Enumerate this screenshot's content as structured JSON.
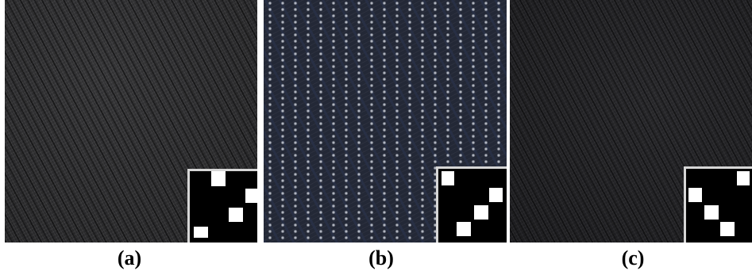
{
  "figure": {
    "panels": [
      {
        "id": "a",
        "caption": "(a)",
        "fabric_color": "#2a2a2c",
        "weave_cells": 4
      },
      {
        "id": "b",
        "caption": "(b)",
        "fabric_color": "#232836",
        "weave_cells": 4
      },
      {
        "id": "c",
        "caption": "(c)",
        "fabric_color": "#1f1f22",
        "weave_cells": 4
      }
    ]
  },
  "colors": {
    "inset_background": "#000000",
    "inset_cell": "#ffffff",
    "inset_border": "#d6d6d6",
    "caption_text": "#000000"
  }
}
